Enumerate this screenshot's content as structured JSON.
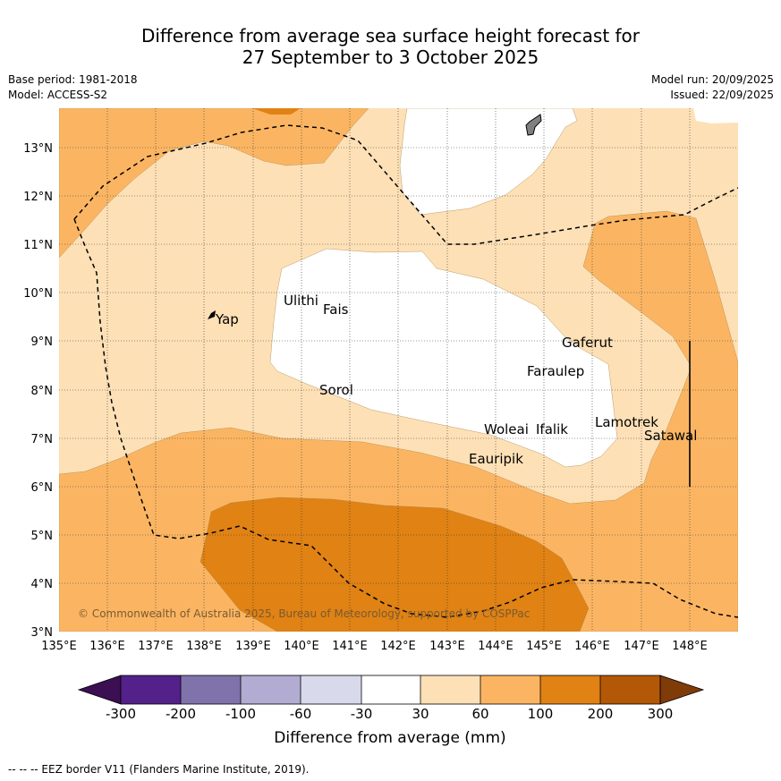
{
  "title_line1": "Difference from average sea surface height forecast for",
  "title_line2": "27 September to 3 October 2025",
  "base_period": "Base period: 1981-2018",
  "model": "Model: ACCESS-S2",
  "model_run": "Model run: 20/09/2025",
  "issued": "Issued: 22/09/2025",
  "copyright": "© Commonwealth of Australia 2025, Bureau of Meteorology, supported by COSPPac",
  "footnote": "--  --  -- EEZ border V11 (Flanders Marine Institute, 2019).",
  "lon_labels": [
    "135°E",
    "136°E",
    "137°E",
    "138°E",
    "139°E",
    "140°E",
    "141°E",
    "142°E",
    "143°E",
    "144°E",
    "145°E",
    "146°E",
    "147°E",
    "148°E"
  ],
  "lat_labels": [
    "3°N",
    "4°N",
    "5°N",
    "6°N",
    "7°N",
    "8°N",
    "9°N",
    "10°N",
    "11°N",
    "12°N",
    "13°N"
  ],
  "places": [
    {
      "name": "Yap"
    },
    {
      "name": "Ulithi"
    },
    {
      "name": "Fais"
    },
    {
      "name": "Gaferut"
    },
    {
      "name": "Faraulep"
    },
    {
      "name": "Sorol"
    },
    {
      "name": "Woleai"
    },
    {
      "name": "Ifalik"
    },
    {
      "name": "Lamotrek"
    },
    {
      "name": "Satawal"
    },
    {
      "name": "Eauripik"
    }
  ],
  "colorbar": {
    "label": "Difference from average (mm)",
    "ticks": [
      "-300",
      "-200",
      "-100",
      "-60",
      "-30",
      "30",
      "60",
      "100",
      "200",
      "300"
    ],
    "colors": [
      "#3b0f52",
      "#54218a",
      "#8073ac",
      "#b2abd2",
      "#d8daeb",
      "#ffffff",
      "#fee0b6",
      "#fbb562",
      "#e08214",
      "#b35806",
      "#7f3b08"
    ]
  },
  "colors": {
    "level_30_60": "#fee0b6",
    "level_60_100": "#fbb562",
    "level_100_200": "#e08214",
    "level_200_300": "#b35806",
    "neutral": "#ffffff"
  }
}
